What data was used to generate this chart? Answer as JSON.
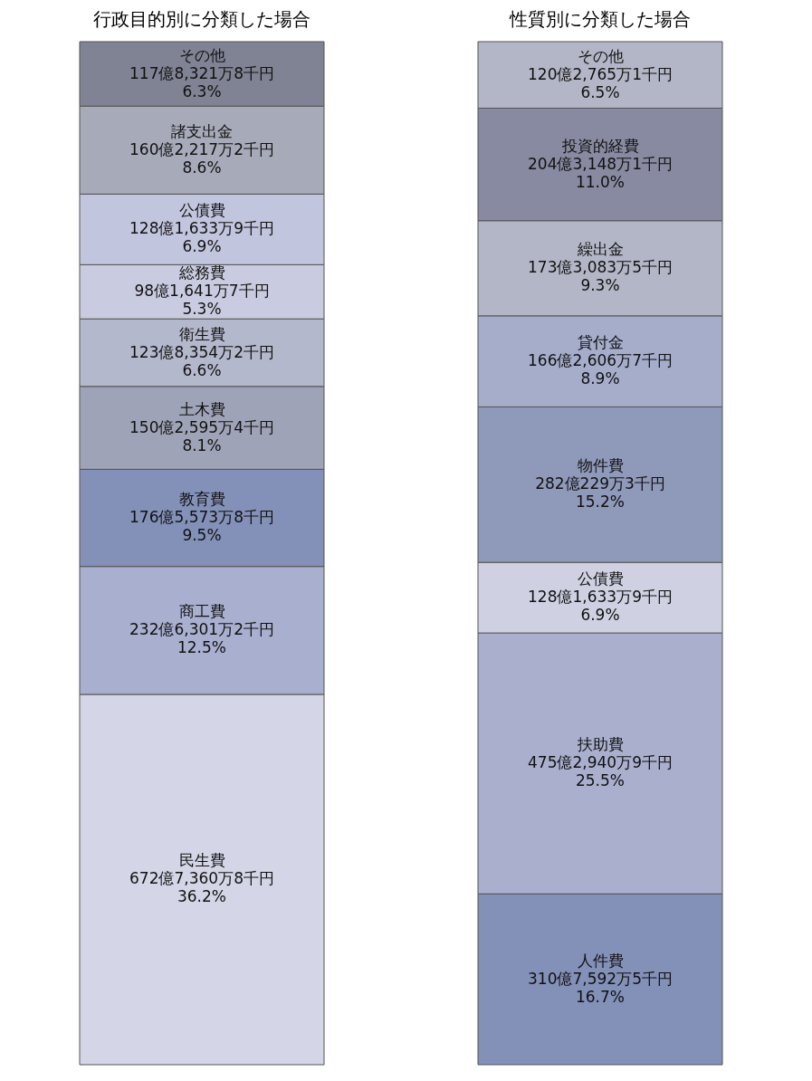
{
  "chart_data": [
    {
      "type": "bar",
      "title": "行政目的別に分類した場合",
      "stacked": true,
      "categories": [
        null
      ],
      "data_labels": true,
      "series": [
        {
          "name": "民生費",
          "color": "#d4d6e7",
          "values": [
            36.2
          ],
          "value_labels": [
            "672億7,360万8千円\n36.2%"
          ]
        },
        {
          "name": "商工費",
          "color": "#a9afcf",
          "values": [
            12.5
          ],
          "value_labels": [
            "232億6,301万2千円\n12.5%"
          ]
        },
        {
          "name": "教育費",
          "color": "#8390b8",
          "values": [
            9.5
          ],
          "value_labels": [
            "176億5,573万8千円\n9.5%"
          ]
        },
        {
          "name": "土木費",
          "color": "#9fa3b7",
          "values": [
            8.1
          ],
          "value_labels": [
            "150億2,595万4千円\n8.1%"
          ]
        },
        {
          "name": "衛生費",
          "color": "#b4b8cc",
          "values": [
            6.6
          ],
          "value_labels": [
            "123億8,354万2千円\n6.6%"
          ]
        },
        {
          "name": "総務費",
          "color": "#c9cce0",
          "values": [
            5.3
          ],
          "value_labels": [
            "98億1,641万7千円\n5.3%"
          ]
        },
        {
          "name": "公債費",
          "color": "#c2c5de",
          "values": [
            6.9
          ],
          "value_labels": [
            "128億1,633万9千円\n6.9%"
          ]
        },
        {
          "name": "諸支出金",
          "color": "#a7aab9",
          "values": [
            8.6
          ],
          "value_labels": [
            "160億2,217万2千円\n8.6%"
          ]
        },
        {
          "name": "その他",
          "color": "#7f8393",
          "values": [
            6.3
          ],
          "value_labels": [
            "117億8,321万8千円\n6.3%"
          ]
        }
      ]
    },
    {
      "type": "bar",
      "title": "性質別に分類した場合",
      "stacked": true,
      "categories": [
        null
      ],
      "data_labels": true,
      "series": [
        {
          "name": "人件費",
          "color": "#8390b8",
          "values": [
            16.7
          ],
          "value_labels": [
            "310億7,592万5千円\n16.7%"
          ]
        },
        {
          "name": "扶助費",
          "color": "#a9afcd",
          "values": [
            25.5
          ],
          "value_labels": [
            "475億2,940万9千円\n25.5%"
          ]
        },
        {
          "name": "公債費",
          "color": "#cfd1e3",
          "values": [
            6.9
          ],
          "value_labels": [
            "128億1,633万9千円\n6.9%"
          ]
        },
        {
          "name": "物件費",
          "color": "#8f99b9",
          "values": [
            15.2
          ],
          "value_labels": [
            "282億229万3千円\n15.2%"
          ]
        },
        {
          "name": "貸付金",
          "color": "#a5adcb",
          "values": [
            8.9
          ],
          "value_labels": [
            "166億2,606万7千円\n8.9%"
          ]
        },
        {
          "name": "繰出金",
          "color": "#b3b6c6",
          "values": [
            9.3
          ],
          "value_labels": [
            "173億3,083万5千円\n9.3%"
          ]
        },
        {
          "name": "投資的経費",
          "color": "#878aa0",
          "values": [
            11.0
          ],
          "value_labels": [
            "204億3,148万1千円\n11.0%"
          ]
        },
        {
          "name": "その他",
          "color": "#b3b6c6",
          "values": [
            6.5
          ],
          "value_labels": [
            "120億2,765万1千円\n6.5%"
          ]
        }
      ]
    }
  ]
}
